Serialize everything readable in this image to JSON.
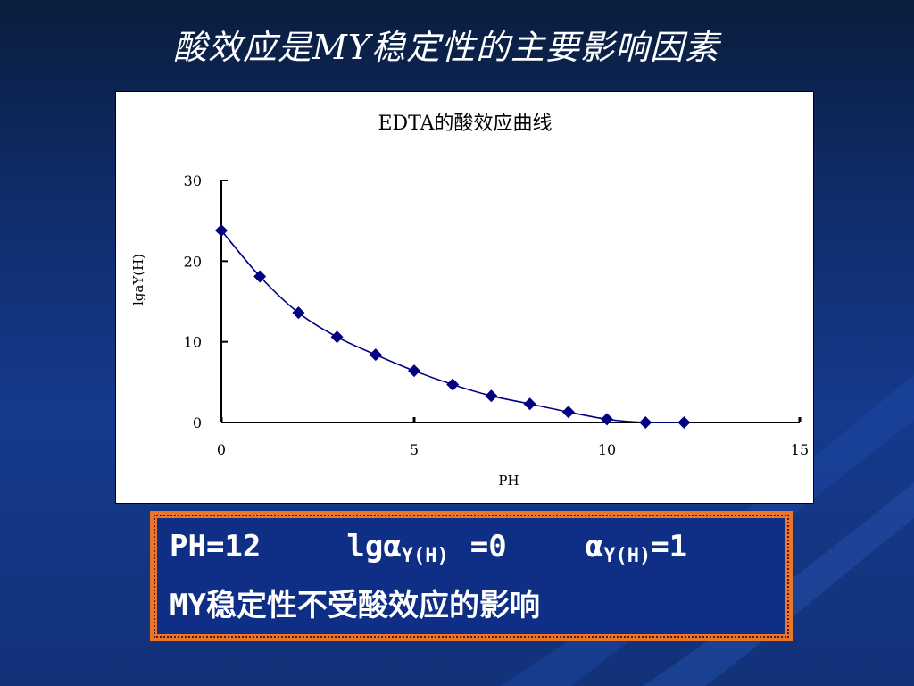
{
  "slide": {
    "title": "酸效应是MY稳定性的主要影响因素",
    "colors": {
      "background": "#123279",
      "note_border": "#e9762b",
      "note_bg": "#0f2f86",
      "series": "#000080"
    }
  },
  "chart_data": {
    "type": "line",
    "title": "EDTA的酸效应曲线",
    "xlabel": "PH",
    "ylabel": "lgaY(H)",
    "xlim": [
      0,
      15
    ],
    "ylim": [
      0,
      30
    ],
    "xticks": [
      0,
      5,
      10,
      15
    ],
    "yticks": [
      0,
      10,
      20,
      30
    ],
    "grid": false,
    "legend": "none",
    "marker": "diamond",
    "x": [
      0,
      1,
      2,
      3,
      4,
      5,
      6,
      7,
      8,
      9,
      10,
      11,
      12
    ],
    "y": [
      23.8,
      18.1,
      13.6,
      10.6,
      8.4,
      6.4,
      4.7,
      3.3,
      2.3,
      1.3,
      0.4,
      0.0,
      0.0
    ]
  },
  "note": {
    "line1_a": "PH=12",
    "line1_b": "lg",
    "line1_alpha1": "α",
    "line1_sub1": "Y(H)",
    "line1_c": "=0",
    "line1_alpha2": "α",
    "line1_sub2": "Y(H)",
    "line1_d": "=1",
    "line2": "MY稳定性不受酸效应的影响"
  }
}
